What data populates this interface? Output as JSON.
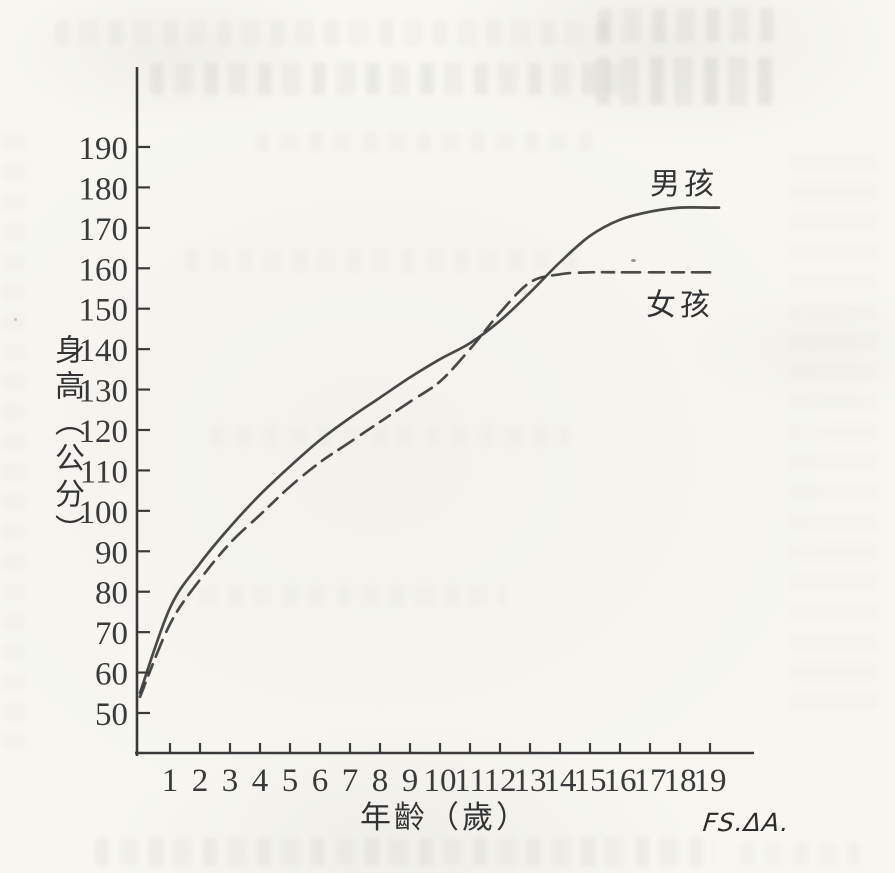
{
  "page": {
    "description": "scanned textbook page with hand-drawn growth chart",
    "paper_color": "#f7f6f1",
    "ink_color": "#3a3a3a"
  },
  "chart_data": {
    "type": "line",
    "title": "",
    "xlabel": "年齡（歲）",
    "ylabel": "身高（公分）",
    "x": [
      0,
      1,
      2,
      3,
      4,
      5,
      6,
      7,
      8,
      9,
      10,
      11,
      12,
      13,
      14,
      15,
      16,
      17,
      18,
      19
    ],
    "x_ticks": [
      1,
      2,
      3,
      4,
      5,
      6,
      7,
      8,
      9,
      10,
      11,
      12,
      13,
      14,
      15,
      16,
      17,
      18,
      19
    ],
    "y_ticks": [
      50,
      60,
      70,
      80,
      90,
      100,
      110,
      120,
      130,
      140,
      150,
      160,
      170,
      180,
      190
    ],
    "xlim": [
      0,
      20
    ],
    "ylim": [
      45,
      195
    ],
    "grid": false,
    "legend_position": "labels-at-curve-ends",
    "series": [
      {
        "name": "男孩",
        "line_style": "solid",
        "color": "#3a3a3a",
        "values": [
          55,
          76,
          87,
          96,
          104,
          111,
          117.5,
          123,
          128,
          133,
          137.5,
          141.5,
          147,
          154,
          161.5,
          168,
          172,
          174,
          175,
          175
        ]
      },
      {
        "name": "女孩",
        "line_style": "dashed",
        "color": "#3a3a3a",
        "values": [
          54,
          72,
          83,
          92,
          99,
          106,
          112,
          117,
          122,
          127,
          132,
          140,
          149,
          156.5,
          158.5,
          159,
          159,
          159,
          159,
          159
        ]
      }
    ]
  },
  "signature": {
    "text": "FS.ΔA."
  }
}
